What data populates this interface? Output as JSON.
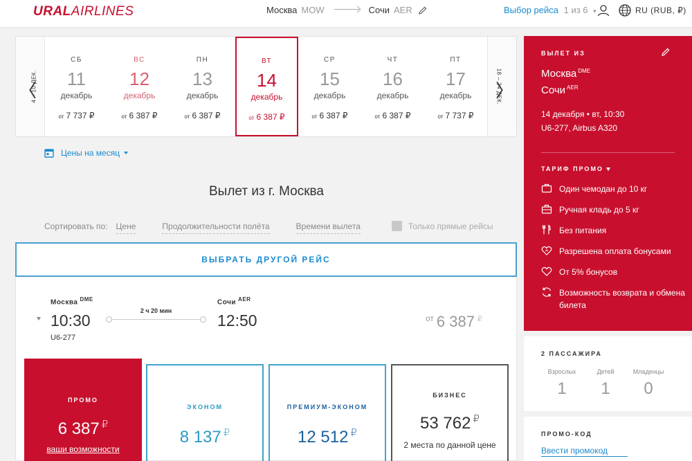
{
  "header": {
    "logo_bold": "URAL",
    "logo_light": "AIRLINES",
    "from_city": "Москва",
    "from_code": "MOW",
    "to_city": "Сочи",
    "to_code": "AER",
    "choice_label": "Выбор рейса",
    "choice_count": "1 из 6",
    "lang": "RU (RUB, ₽)"
  },
  "dates": {
    "prev_range": "4 – 10 ДЕК.",
    "next_range": "18 – 24 ДЕК.",
    "days": [
      {
        "dow": "СБ",
        "num": "11",
        "month": "декабрь",
        "price_prefix": "от",
        "price": "7 737 ₽"
      },
      {
        "dow": "ВС",
        "num": "12",
        "month": "декабрь",
        "price_prefix": "от",
        "price": "6 387 ₽"
      },
      {
        "dow": "ПН",
        "num": "13",
        "month": "декабрь",
        "price_prefix": "от",
        "price": "6 387 ₽"
      },
      {
        "dow": "ВТ",
        "num": "14",
        "month": "декабрь",
        "price_prefix": "от",
        "price": "6 387 ₽"
      },
      {
        "dow": "СР",
        "num": "15",
        "month": "декабрь",
        "price_prefix": "от",
        "price": "6 387 ₽"
      },
      {
        "dow": "ЧТ",
        "num": "16",
        "month": "декабрь",
        "price_prefix": "от",
        "price": "6 387 ₽"
      },
      {
        "dow": "ПТ",
        "num": "17",
        "month": "декабрь",
        "price_prefix": "от",
        "price": "7 737 ₽"
      }
    ]
  },
  "month_prices": "Цены на месяц",
  "title": "Вылет из г. Москва",
  "sort": {
    "label": "Сортировать по:",
    "options": [
      "Цене",
      "Продолжительности полёта",
      "Времени вылета"
    ],
    "direct_only": "Только прямые рейсы"
  },
  "other_flight": "ВЫБРАТЬ ДРУГОЙ РЕЙС",
  "flight": {
    "dep_city": "Москва",
    "dep_code": "DME",
    "dep_time": "10:30",
    "flight_no": "U6-277",
    "duration": "2 ч 20 мин",
    "arr_city": "Сочи",
    "arr_code": "AER",
    "arr_time": "12:50",
    "price_prefix": "от",
    "price": "6 387",
    "currency": "₽"
  },
  "fares": {
    "promo": {
      "name": "ПРОМО",
      "price": "6 387",
      "currency": "₽",
      "note": "ваши возможности"
    },
    "economy": {
      "name": "ЭКОНОМ",
      "price": "8 137",
      "currency": "₽"
    },
    "premium": {
      "name": "ПРЕМИУМ-ЭКОНОМ",
      "price": "12 512",
      "currency": "₽"
    },
    "business": {
      "name": "БИЗНЕС",
      "price": "53 762",
      "currency": "₽",
      "note": "2 места по данной цене"
    }
  },
  "side": {
    "depart_title": "ВЫЛЕТ ИЗ",
    "from_city": "Москва",
    "from_code": "DME",
    "to_city": "Сочи",
    "to_code": "AER",
    "date_line": "14 декабря • вт, 10:30",
    "flight_line": "U6-277, Airbus A320",
    "tariff_title": "ТАРИФ ПРОМО",
    "features": [
      "Один чемодан до 10 кг",
      "Ручная кладь до 5 кг",
      "Без питания",
      "Разрешена оплата бонусами",
      "От 5% бонусов",
      "Возможность возврата и обмена билета"
    ],
    "passengers_title": "2 ПАССАЖИРА",
    "adults_label": "Взрослых",
    "adults": "1",
    "children_label": "Детей",
    "children": "1",
    "infants_label": "Младенцы",
    "infants": "0",
    "promo_title": "ПРОМО-КОД",
    "promo_link": "Ввести промокод"
  },
  "colors": {
    "brand_red": "#c8102e",
    "link_blue": "#1b8bd0"
  }
}
